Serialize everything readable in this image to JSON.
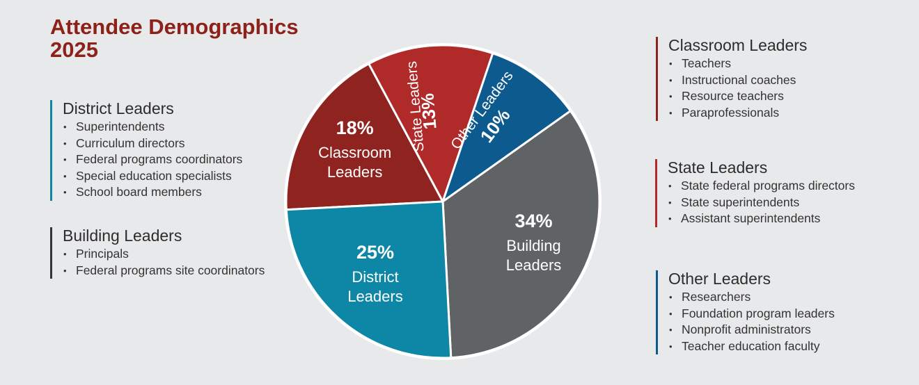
{
  "title": {
    "line1": "Attendee Demographics",
    "line2": "2025"
  },
  "chart_data": {
    "type": "pie",
    "slices": [
      {
        "label": "Classroom Leaders",
        "percent_label": "18%",
        "value": 18,
        "color": "#8e2320"
      },
      {
        "label": "State Leaders",
        "percent_label": "13%",
        "value": 13,
        "color": "#b02a2a"
      },
      {
        "label": "Other Leaders",
        "percent_label": "10%",
        "value": 10,
        "color": "#0d5a8f"
      },
      {
        "label": "Building Leaders",
        "percent_label": "34%",
        "value": 34,
        "color": "#5f6366"
      },
      {
        "label": "District Leaders",
        "percent_label": "25%",
        "value": 25,
        "color": "#0e87a6"
      }
    ]
  },
  "groups": {
    "district": {
      "title": "District Leaders",
      "color": "#0e87a6",
      "items": [
        "Superintendents",
        "Curriculum directors",
        "Federal programs coordinators",
        "Special education specialists",
        "School board members"
      ]
    },
    "building": {
      "title": "Building Leaders",
      "color": "#333333",
      "items": [
        "Principals",
        "Federal programs site coordinators"
      ]
    },
    "classroom": {
      "title": "Classroom Leaders",
      "color": "#8e2320",
      "items": [
        "Teachers",
        "Instructional coaches",
        "Resource teachers",
        "Paraprofessionals"
      ]
    },
    "state": {
      "title": "State Leaders",
      "color": "#b02a2a",
      "items": [
        "State federal programs directors",
        "State superintendents",
        "Assistant superintendents"
      ]
    },
    "other": {
      "title": "Other Leaders",
      "color": "#0d5a8f",
      "items": [
        "Researchers",
        "Foundation program leaders",
        "Nonprofit administrators",
        "Teacher education faculty"
      ]
    }
  }
}
